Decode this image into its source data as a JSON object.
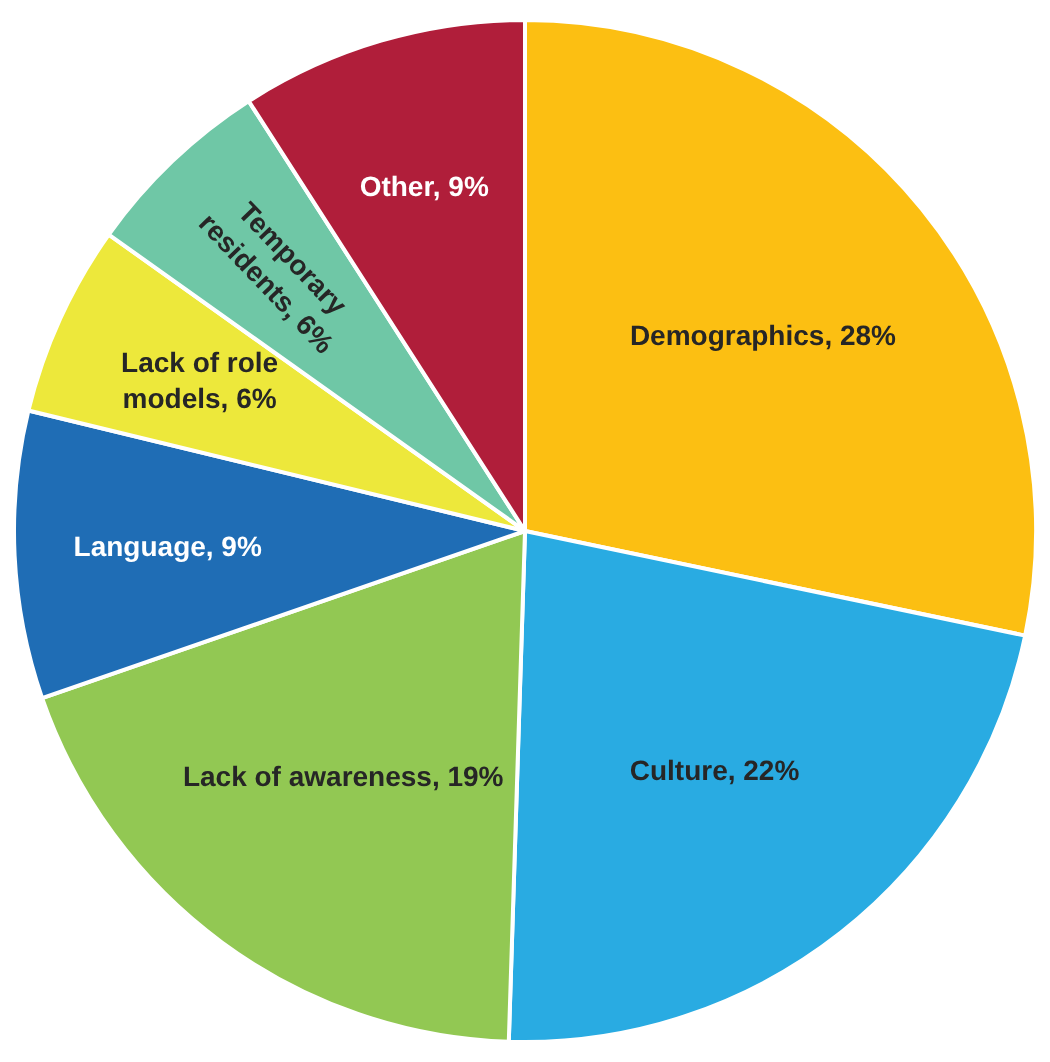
{
  "chart_data": {
    "type": "pie",
    "categories": [
      "Demographics",
      "Culture",
      "Lack of awareness",
      "Language",
      "Lack of role models",
      "Temporary residents",
      "Other"
    ],
    "values": [
      28,
      22,
      19,
      9,
      6,
      6,
      9
    ],
    "value_labels": [
      "28%",
      "22%",
      "19%",
      "9%",
      "6%",
      "6%",
      "9%"
    ],
    "colors": [
      "#fcbf12",
      "#29abe2",
      "#92c853",
      "#1f6db5",
      "#ede83b",
      "#6fc7a6",
      "#b01e3a"
    ],
    "legend": false
  }
}
